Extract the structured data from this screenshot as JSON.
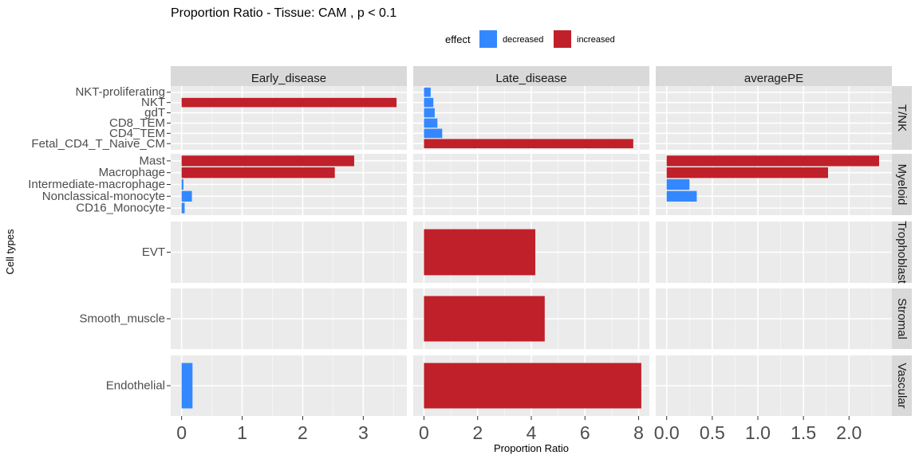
{
  "chart_data": {
    "type": "bar",
    "orientation": "horizontal",
    "title": "Proportion Ratio - Tissue: CAM , p < 0.1",
    "xlabel": "Proportion Ratio",
    "ylabel": "Cell types",
    "legend": {
      "title": "effect",
      "position": "top",
      "entries": [
        {
          "key": "decreased",
          "label": "decreased",
          "color": "#3388FF"
        },
        {
          "key": "increased",
          "label": "increased",
          "color": "#C0202A"
        }
      ]
    },
    "grid": true,
    "facet_columns": [
      {
        "name": "Early_disease",
        "xlim": [
          -0.18,
          3.72
        ],
        "ticks": [
          0,
          1,
          2,
          3
        ],
        "tick_labels": [
          "0",
          "1",
          "2",
          "3"
        ]
      },
      {
        "name": "Late_disease",
        "xlim": [
          -0.4,
          8.4
        ],
        "ticks": [
          0,
          2,
          4,
          6,
          8
        ],
        "tick_labels": [
          "0",
          "2",
          "4",
          "6",
          "8"
        ]
      },
      {
        "name": "averagePE",
        "xlim": [
          -0.12,
          2.47
        ],
        "ticks": [
          0,
          0.5,
          1,
          1.5,
          2
        ],
        "tick_labels": [
          "0.0",
          "0.5",
          "1.0",
          "1.5",
          "2.0"
        ]
      }
    ],
    "facet_rows": [
      {
        "name": "T/NK",
        "categories": [
          "NKT-proliferating",
          "NKT",
          "gdT",
          "CD8_TEM",
          "CD4_TEM",
          "Fetal_CD4_T_Naive_CM"
        ]
      },
      {
        "name": "Myeloid",
        "categories": [
          "Mast",
          "Macrophage",
          "Intermediate-macrophage",
          "Nonclassical-monocyte",
          "CD16_Monocyte"
        ]
      },
      {
        "name": "Trophoblast",
        "categories": [
          "EVT"
        ]
      },
      {
        "name": "Stromal",
        "categories": [
          "Smooth_muscle"
        ]
      },
      {
        "name": "Vascular",
        "categories": [
          "Endothelial"
        ]
      }
    ],
    "bars": [
      {
        "col": "Early_disease",
        "row": "T/NK",
        "category": "NKT",
        "value": 3.55,
        "effect": "increased"
      },
      {
        "col": "Early_disease",
        "row": "Myeloid",
        "category": "Mast",
        "value": 2.85,
        "effect": "increased"
      },
      {
        "col": "Early_disease",
        "row": "Myeloid",
        "category": "Macrophage",
        "value": 2.53,
        "effect": "increased"
      },
      {
        "col": "Early_disease",
        "row": "Myeloid",
        "category": "Intermediate-macrophage",
        "value": 0.03,
        "effect": "decreased"
      },
      {
        "col": "Early_disease",
        "row": "Myeloid",
        "category": "Nonclassical-monocyte",
        "value": 0.17,
        "effect": "decreased"
      },
      {
        "col": "Early_disease",
        "row": "Myeloid",
        "category": "CD16_Monocyte",
        "value": 0.05,
        "effect": "decreased"
      },
      {
        "col": "Early_disease",
        "row": "Vascular",
        "category": "Endothelial",
        "value": 0.18,
        "effect": "decreased"
      },
      {
        "col": "Late_disease",
        "row": "T/NK",
        "category": "NKT-proliferating",
        "value": 0.25,
        "effect": "decreased"
      },
      {
        "col": "Late_disease",
        "row": "T/NK",
        "category": "NKT",
        "value": 0.35,
        "effect": "decreased"
      },
      {
        "col": "Late_disease",
        "row": "T/NK",
        "category": "gdT",
        "value": 0.4,
        "effect": "decreased"
      },
      {
        "col": "Late_disease",
        "row": "T/NK",
        "category": "CD8_TEM",
        "value": 0.5,
        "effect": "decreased"
      },
      {
        "col": "Late_disease",
        "row": "T/NK",
        "category": "CD4_TEM",
        "value": 0.68,
        "effect": "decreased"
      },
      {
        "col": "Late_disease",
        "row": "T/NK",
        "category": "Fetal_CD4_T_Naive_CM",
        "value": 7.8,
        "effect": "increased"
      },
      {
        "col": "Late_disease",
        "row": "Trophoblast",
        "category": "EVT",
        "value": 4.15,
        "effect": "increased"
      },
      {
        "col": "Late_disease",
        "row": "Stromal",
        "category": "Smooth_muscle",
        "value": 4.5,
        "effect": "increased"
      },
      {
        "col": "Late_disease",
        "row": "Vascular",
        "category": "Endothelial",
        "value": 8.1,
        "effect": "increased"
      },
      {
        "col": "averagePE",
        "row": "Myeloid",
        "category": "Mast",
        "value": 2.33,
        "effect": "increased"
      },
      {
        "col": "averagePE",
        "row": "Myeloid",
        "category": "Macrophage",
        "value": 1.77,
        "effect": "increased"
      },
      {
        "col": "averagePE",
        "row": "Myeloid",
        "category": "Intermediate-macrophage",
        "value": 0.25,
        "effect": "decreased"
      },
      {
        "col": "averagePE",
        "row": "Myeloid",
        "category": "Nonclassical-monocyte",
        "value": 0.33,
        "effect": "decreased"
      }
    ]
  }
}
